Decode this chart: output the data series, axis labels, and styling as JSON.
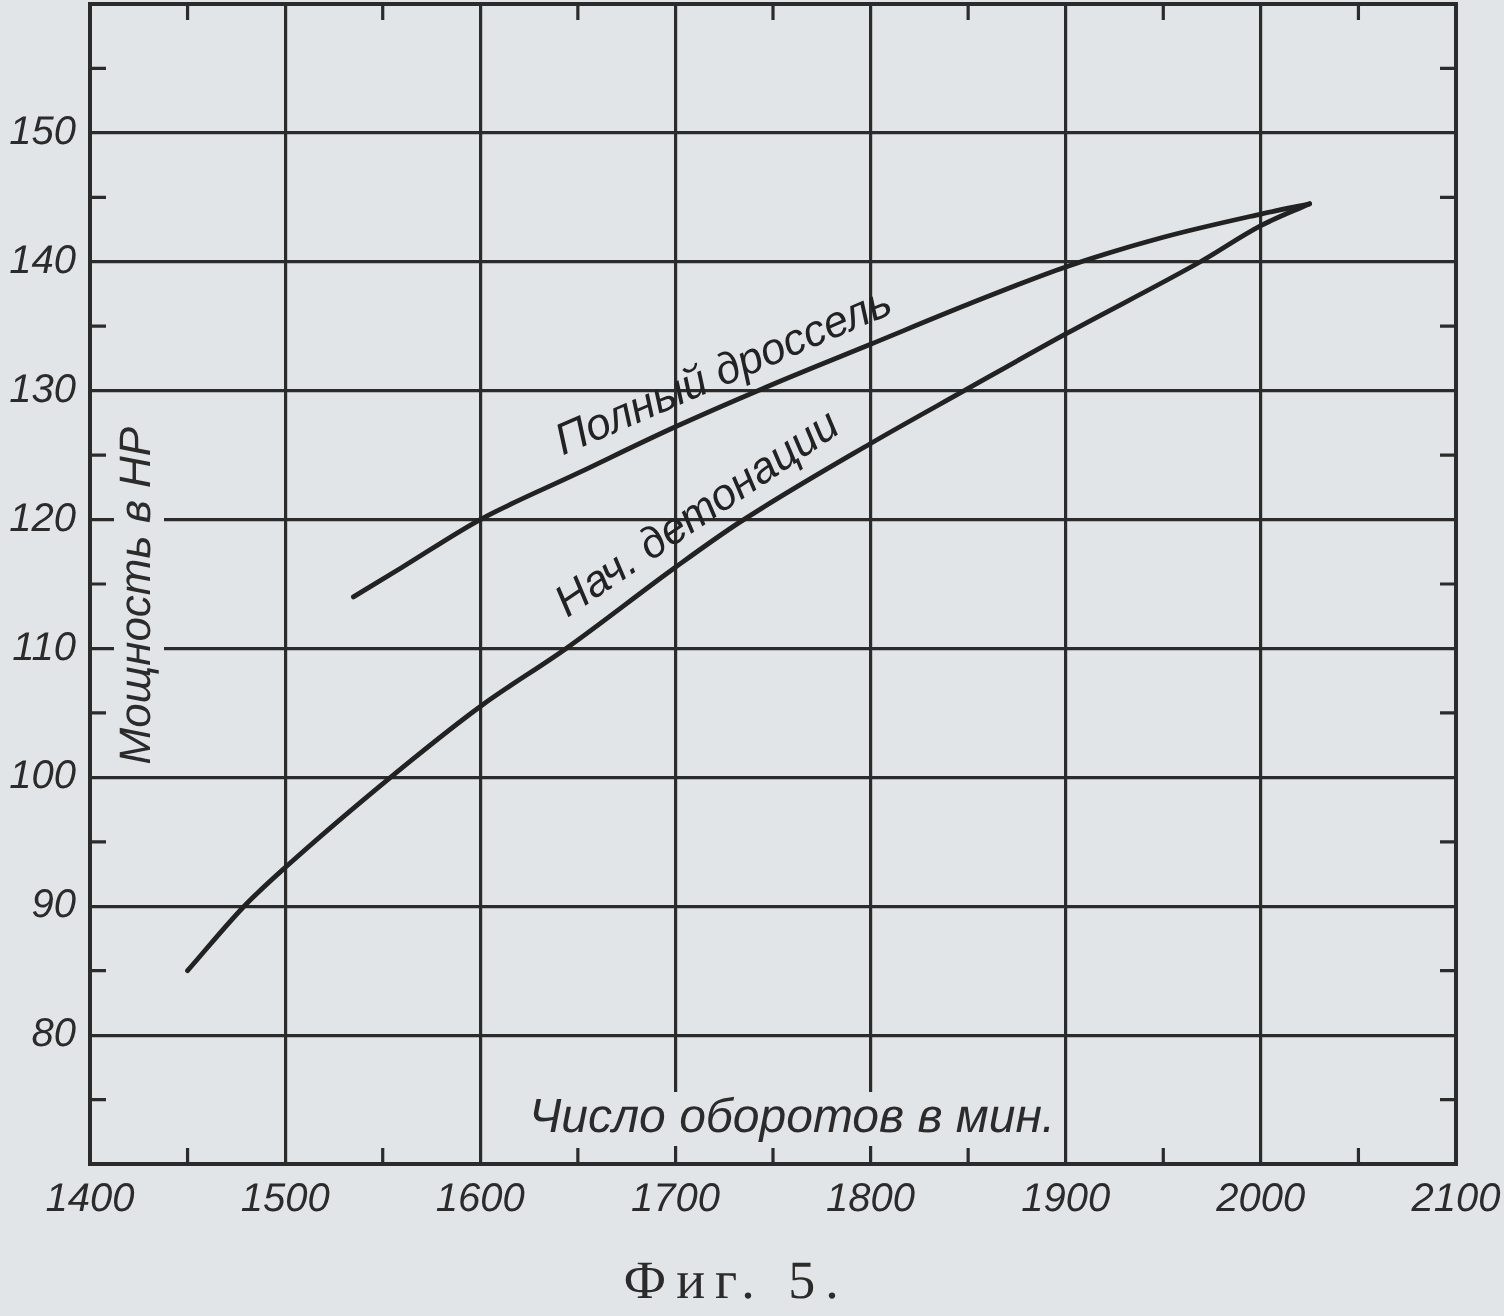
{
  "chart_data": {
    "type": "line",
    "xlabel": "Число оборотов в мин.",
    "ylabel": "Мощность в HP",
    "annotations": [
      "Фиг. 5."
    ],
    "series": [
      {
        "name": "Полный дроссель",
        "color": "#222222",
        "x": [
          1535,
          1560,
          1600,
          1650,
          1700,
          1750,
          1800,
          1850,
          1900,
          1950,
          2000,
          2025
        ],
        "values": [
          114,
          116.3,
          120,
          123.6,
          127.2,
          130.5,
          133.6,
          136.7,
          139.6,
          141.9,
          143.7,
          144.5
        ]
      },
      {
        "name": "Нач. детонации",
        "color": "#222222",
        "x": [
          1450,
          1479,
          1500,
          1554,
          1600,
          1644,
          1700,
          1733,
          1800,
          1848,
          1900,
          1969,
          2000,
          2025
        ],
        "values": [
          85,
          90,
          93,
          100,
          105.5,
          110,
          116.3,
          119.8,
          125.9,
          130,
          134.4,
          140,
          142.8,
          144.5
        ]
      }
    ],
    "xlim": [
      1400,
      2100
    ],
    "xticks": [
      1400,
      {
        "value": 1450,
        "label": null
      },
      1500,
      {
        "value": 1550,
        "label": null
      },
      1600,
      {
        "value": 1650,
        "label": null
      },
      1700,
      {
        "value": 1750,
        "label": null
      },
      1800,
      {
        "value": 1850,
        "label": null
      },
      1900,
      {
        "value": 1950,
        "label": null
      },
      2000,
      {
        "value": 2050,
        "label": null
      },
      2100
    ],
    "ylim": [
      70,
      160
    ],
    "yticks": [
      {
        "value": 75,
        "label": null
      },
      80,
      {
        "value": 85,
        "label": null
      },
      90,
      {
        "value": 95,
        "label": null
      },
      100,
      {
        "value": 105,
        "label": null
      },
      110,
      {
        "value": 115,
        "label": null
      },
      120,
      {
        "value": 125,
        "label": null
      },
      130,
      {
        "value": 135,
        "label": null
      },
      140,
      {
        "value": 145,
        "label": null
      },
      150,
      {
        "value": 155,
        "label": null
      }
    ],
    "grid": true
  }
}
